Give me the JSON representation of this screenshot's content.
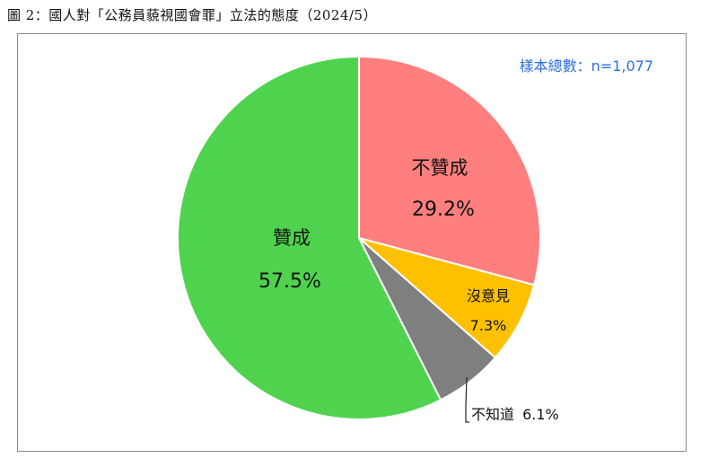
{
  "figure_title": "圖 2：國人對「公務員藐視國會罪」立法的態度（2024/5）",
  "sample_note": "樣本總數：n=1,077",
  "chart_data": {
    "type": "pie",
    "title": "",
    "slices": [
      {
        "label": "不贊成",
        "value": 29.2,
        "value_label": "29.2%",
        "color": "#ff7f7f"
      },
      {
        "label": "沒意見",
        "value": 7.3,
        "value_label": "7.3%",
        "color": "#ffc000"
      },
      {
        "label": "不知道",
        "value": 6.1,
        "value_label": "6.1%",
        "color": "#7f7f7f"
      },
      {
        "label": "贊成",
        "value": 57.5,
        "value_label": "57.5%",
        "color": "#4fd34f"
      }
    ],
    "start": "12-o'clock",
    "direction": "clockwise",
    "legend": "none"
  }
}
